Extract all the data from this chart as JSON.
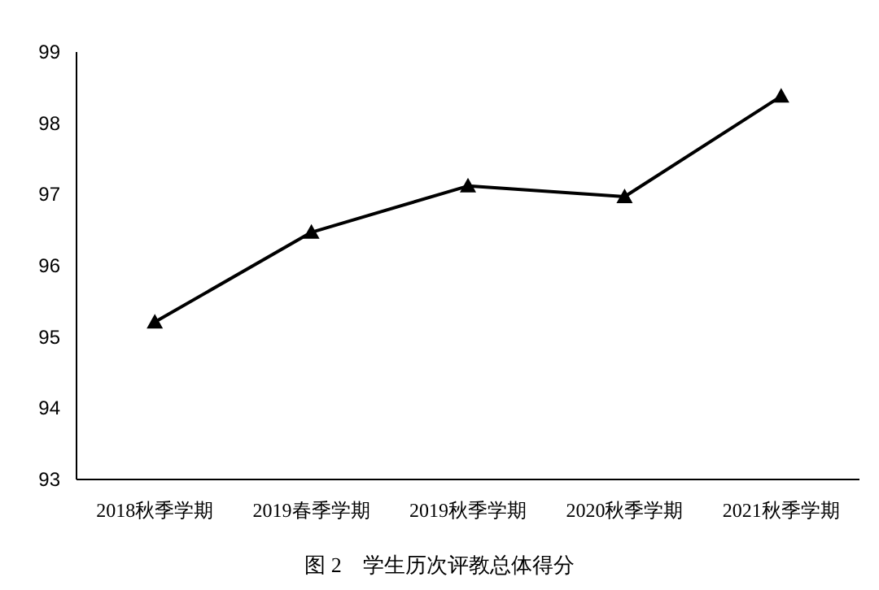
{
  "chart_data": {
    "type": "line",
    "title": "图 2　学生历次评教总体得分",
    "categories": [
      "2018秋季学期",
      "2019春季学期",
      "2019秋季学期",
      "2020秋季学期",
      "2021秋季学期"
    ],
    "series": [
      {
        "color": "#000000",
        "values": [
          95.21,
          96.47,
          97.12,
          96.97,
          98.38
        ]
      }
    ],
    "ylim": [
      93,
      99
    ],
    "yticks": [
      93,
      94,
      95,
      96,
      97,
      98,
      99
    ],
    "grid": false,
    "marker": "triangle",
    "line_style": "solid"
  }
}
